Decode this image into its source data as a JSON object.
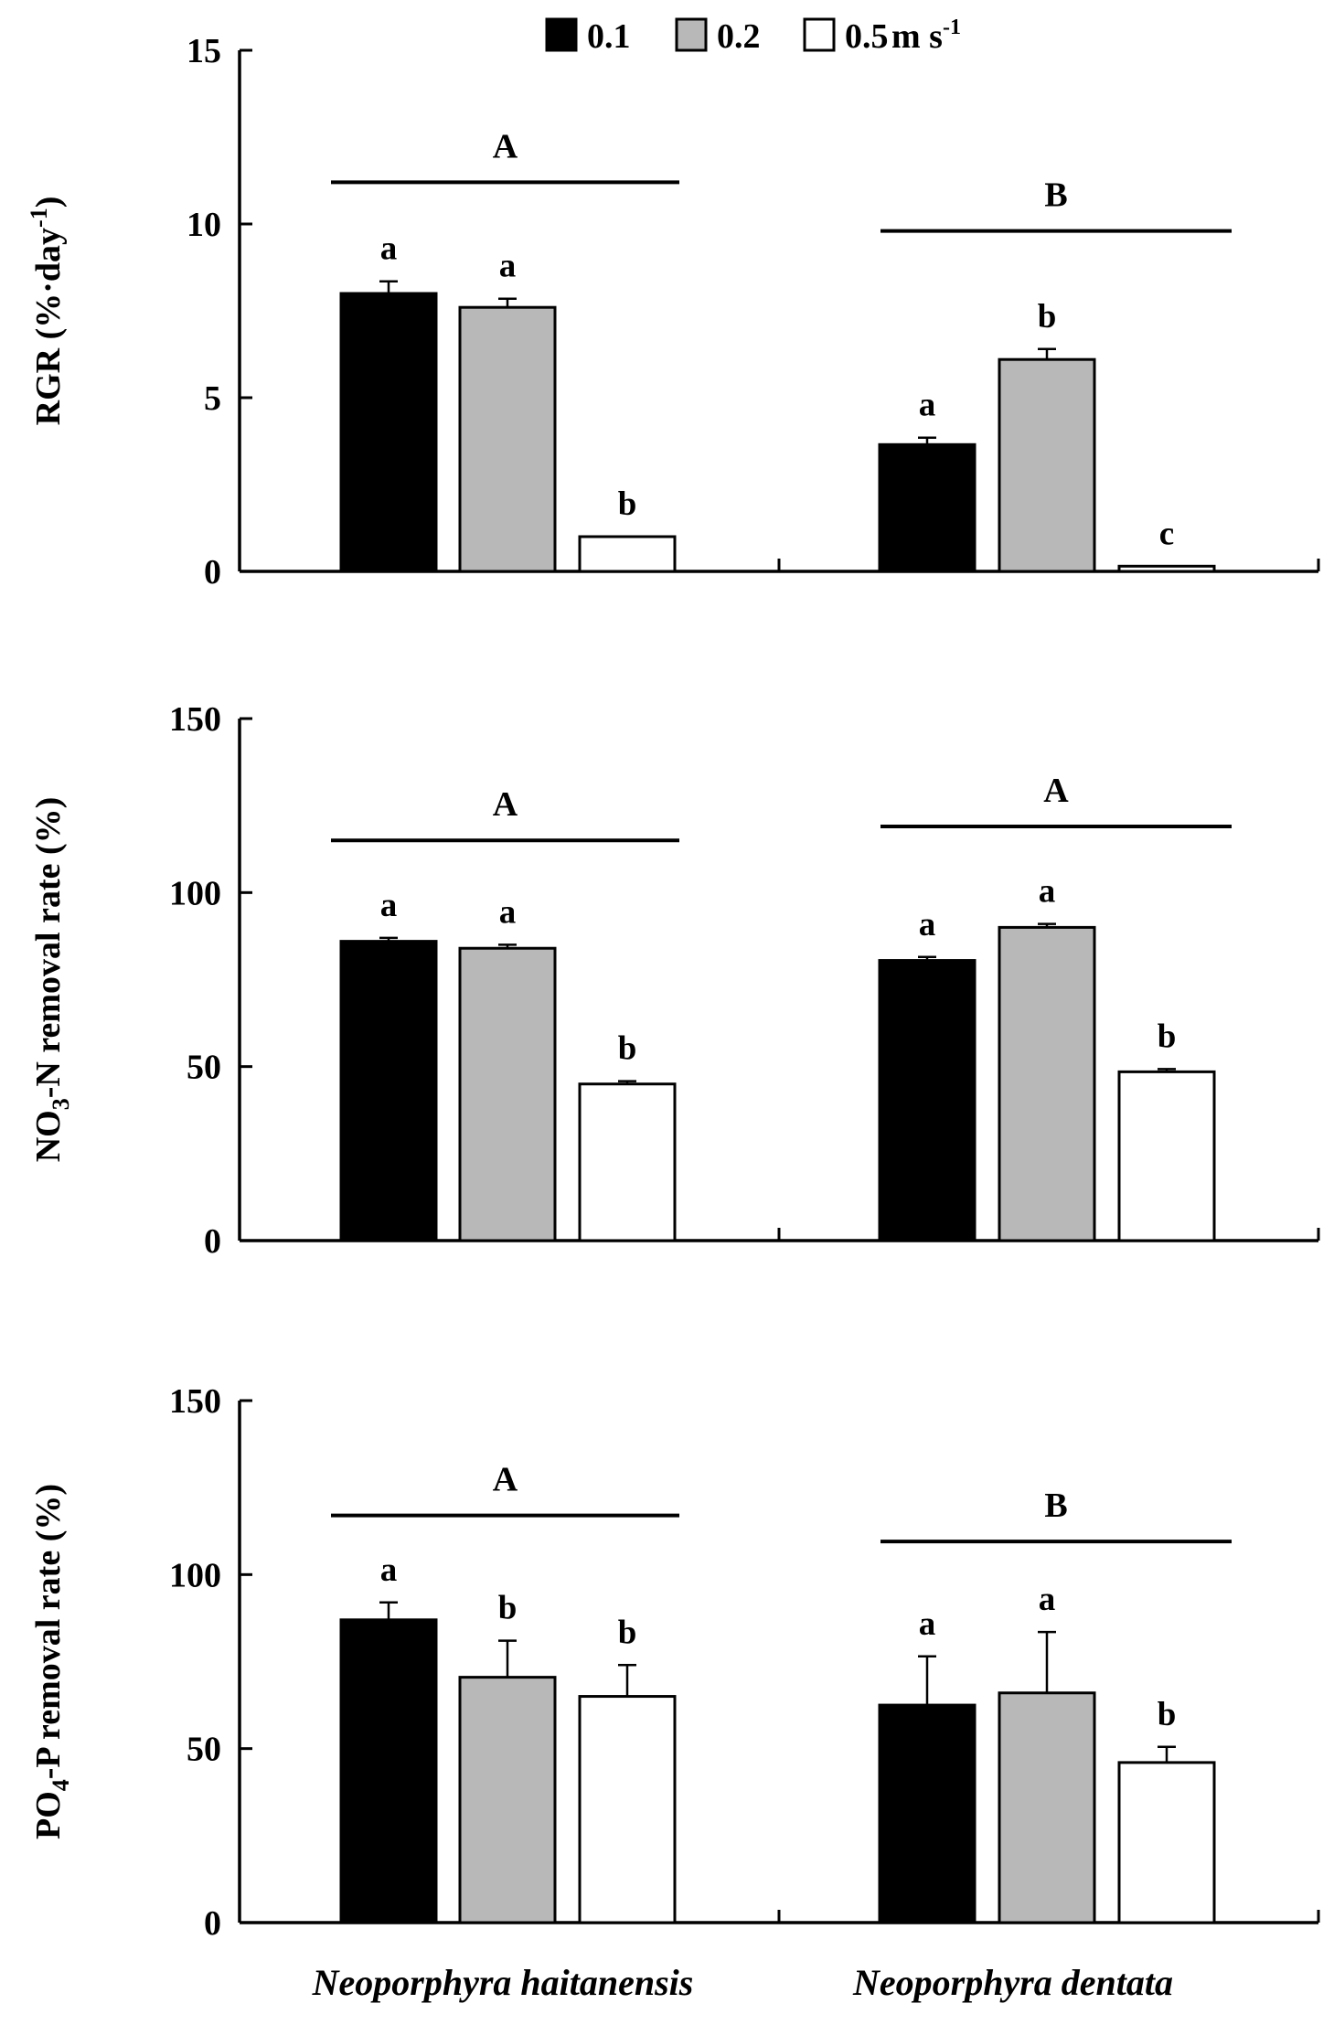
{
  "legend": {
    "items": [
      {
        "label": "0.1",
        "color": "#000000"
      },
      {
        "label": "0.2",
        "color": "#b8b8b8"
      },
      {
        "label": "0.5",
        "color": "#ffffff"
      }
    ],
    "unit_base": "m s",
    "unit_exp": "-1"
  },
  "chart_data": [
    {
      "type": "bar",
      "panel": "top",
      "categories": [
        "Neoporphyra haitanensis",
        "Neoporphyra dentata"
      ],
      "ylabel": {
        "main": "RGR (%·day",
        "sup": "-1",
        "tail": ")"
      },
      "ylim": [
        0,
        15
      ],
      "yticks": [
        0,
        5,
        10,
        15
      ],
      "series": [
        {
          "name": "0.1",
          "values": [
            8.0,
            3.65
          ],
          "errors": [
            0.35,
            0.2
          ],
          "letters": [
            "a",
            "a"
          ]
        },
        {
          "name": "0.2",
          "values": [
            7.6,
            6.1
          ],
          "errors": [
            0.25,
            0.3
          ],
          "letters": [
            "a",
            "b"
          ]
        },
        {
          "name": "0.5",
          "values": [
            1.0,
            0.15
          ],
          "errors": [
            0.0,
            0.0
          ],
          "letters": [
            "b",
            "c"
          ]
        }
      ],
      "group_letters": [
        "A",
        "B"
      ],
      "group_line_values": [
        11.2,
        9.8
      ]
    },
    {
      "type": "bar",
      "panel": "middle",
      "categories": [
        "Neoporphyra haitanensis",
        "Neoporphyra dentata"
      ],
      "ylabel": {
        "pre": "NO",
        "sub": "3",
        "main": "-N removal rate (%)"
      },
      "ylim": [
        0,
        150
      ],
      "yticks": [
        0,
        50,
        100,
        150
      ],
      "series": [
        {
          "name": "0.1",
          "values": [
            86,
            80.5
          ],
          "errors": [
            1.0,
            1.0
          ],
          "letters": [
            "a",
            "a"
          ]
        },
        {
          "name": "0.2",
          "values": [
            84,
            90
          ],
          "errors": [
            1.0,
            1.0
          ],
          "letters": [
            "a",
            "a"
          ]
        },
        {
          "name": "0.5",
          "values": [
            45,
            48.5
          ],
          "errors": [
            0.8,
            0.8
          ],
          "letters": [
            "b",
            "b"
          ]
        }
      ],
      "group_letters": [
        "A",
        "A"
      ],
      "group_line_values": [
        115,
        119
      ]
    },
    {
      "type": "bar",
      "panel": "bottom",
      "categories": [
        "Neoporphyra haitanensis",
        "Neoporphyra dentata"
      ],
      "ylabel": {
        "pre": "PO",
        "sub": "4",
        "main": "-P removal rate (%)"
      },
      "ylim": [
        0,
        150
      ],
      "yticks": [
        0,
        50,
        100,
        150
      ],
      "series": [
        {
          "name": "0.1",
          "values": [
            87,
            62.5
          ],
          "errors": [
            5,
            14
          ],
          "letters": [
            "a",
            "a"
          ]
        },
        {
          "name": "0.2",
          "values": [
            70.5,
            66
          ],
          "errors": [
            10.5,
            17.5
          ],
          "letters": [
            "b",
            "a"
          ]
        },
        {
          "name": "0.5",
          "values": [
            65,
            46
          ],
          "errors": [
            9,
            4.5
          ],
          "letters": [
            "b",
            "b"
          ]
        }
      ],
      "group_letters": [
        "A",
        "B"
      ],
      "group_line_values": [
        117,
        109.5
      ]
    }
  ]
}
